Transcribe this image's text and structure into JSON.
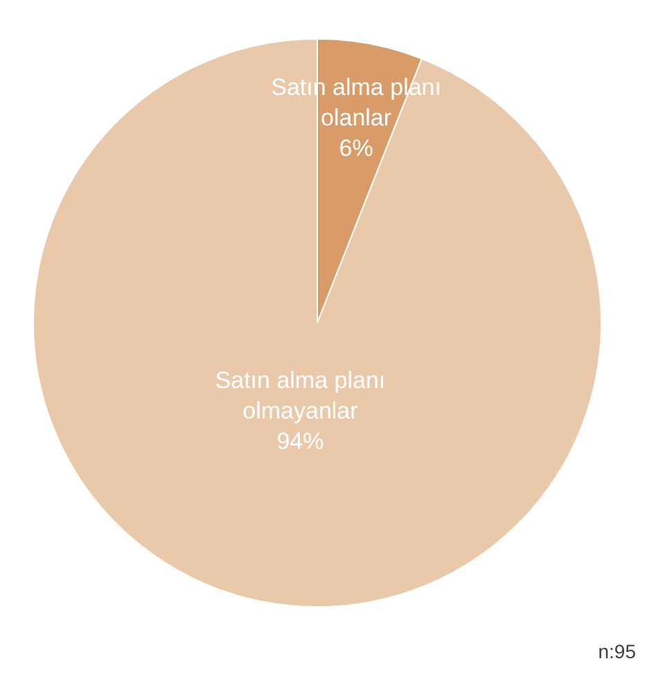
{
  "chart_data": {
    "type": "pie",
    "categories": [
      "Satın alma planı olanlar",
      "Satın alma planı olmayanlar"
    ],
    "values": [
      6,
      94
    ],
    "colors": [
      "#d99c69",
      "#eac8aa"
    ],
    "value_labels": [
      "6%",
      "94%"
    ],
    "annotations": [
      "n:95"
    ]
  }
}
